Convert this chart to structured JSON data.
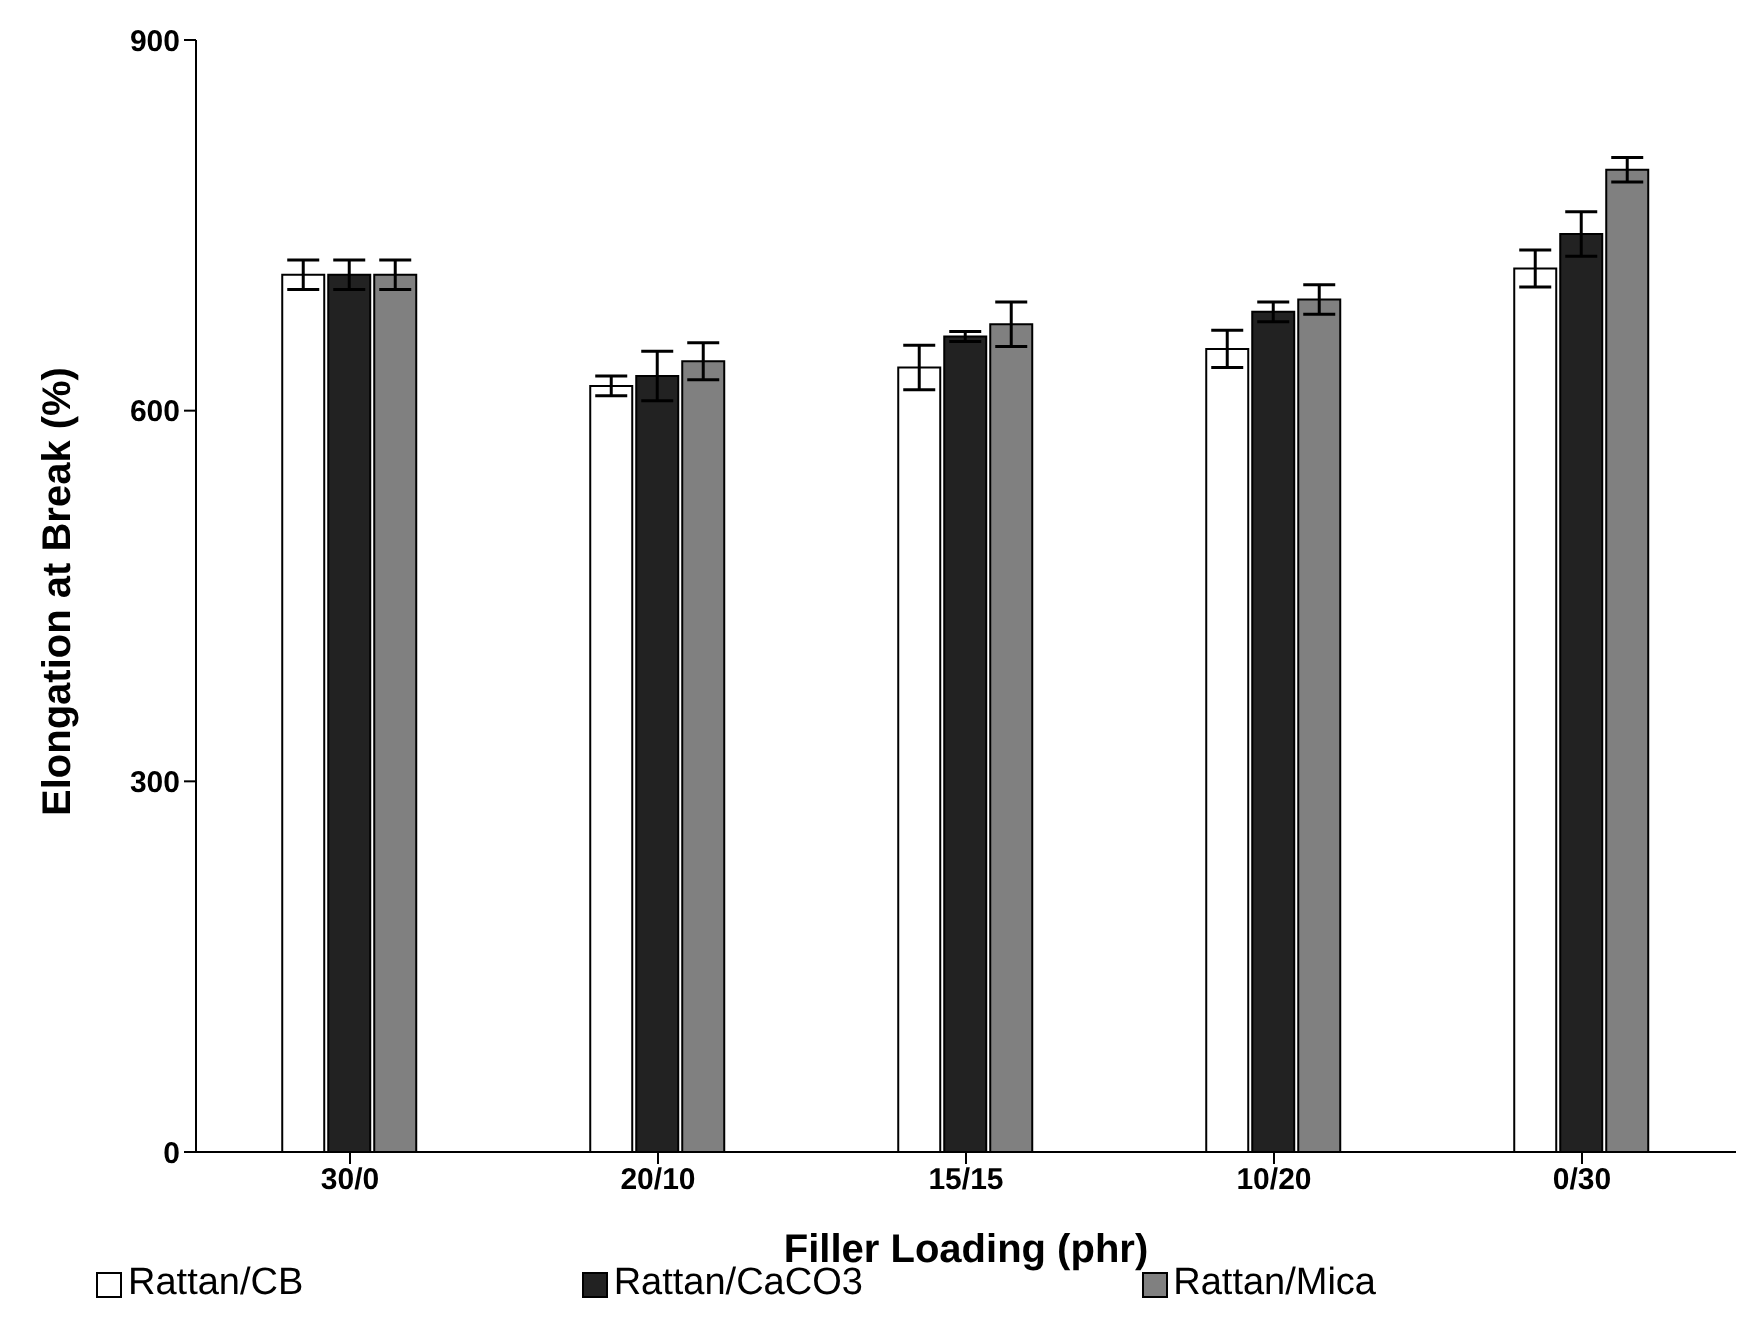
{
  "chart_data": {
    "type": "bar",
    "xlabel": "Filler Loading (phr)",
    "ylabel": "Elongation at Break (%)",
    "categories": [
      "30/0",
      "20/10",
      "15/15",
      "10/20",
      "0/30"
    ],
    "series": [
      {
        "name": "Rattan/CB",
        "color": "#ffffff",
        "values": [
          710,
          620,
          635,
          650,
          715
        ],
        "errors": [
          12,
          8,
          18,
          15,
          15
        ]
      },
      {
        "name": "Rattan/CaCO3",
        "color": "#222222",
        "values": [
          710,
          628,
          660,
          680,
          743
        ],
        "errors": [
          12,
          20,
          4,
          8,
          18
        ]
      },
      {
        "name": "Rattan/Mica",
        "color": "#808080",
        "values": [
          710,
          640,
          670,
          690,
          795
        ],
        "errors": [
          12,
          15,
          18,
          12,
          10
        ]
      }
    ],
    "ylim": [
      0,
      900
    ],
    "yticks": [
      0,
      300,
      600,
      900
    ],
    "legend": "bottom"
  }
}
